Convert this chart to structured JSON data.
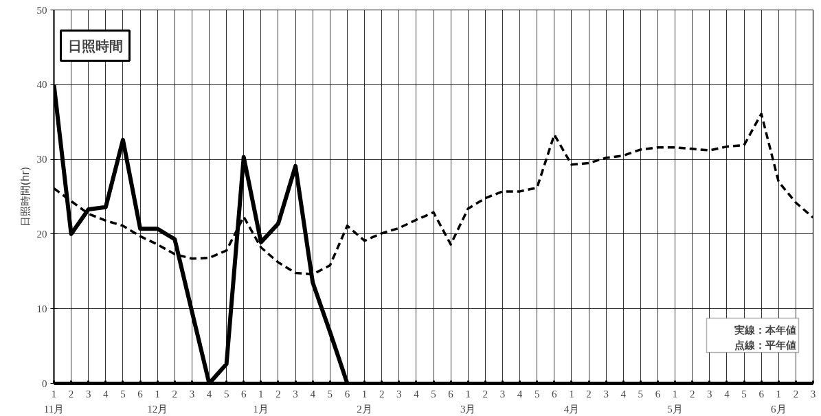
{
  "chart_data": {
    "type": "line",
    "title": "日照時間",
    "ylabel": "日照時間(hr)",
    "categories": [
      "1",
      "2",
      "3",
      "4",
      "5",
      "6",
      "1",
      "2",
      "3",
      "4",
      "5",
      "6",
      "1",
      "2",
      "3",
      "4",
      "5",
      "6",
      "1",
      "2",
      "3",
      "4",
      "5",
      "6",
      "1",
      "2",
      "3",
      "4",
      "5",
      "6",
      "1",
      "2",
      "3",
      "4",
      "5",
      "6",
      "1",
      "2",
      "3",
      "4",
      "5",
      "6",
      "1",
      "2",
      "3"
    ],
    "series": [
      {
        "color": "#000000",
        "line_style": "solid",
        "values": [
          40,
          20,
          23.3,
          23.6,
          32.6,
          20.7,
          20.7,
          19.3,
          9.6,
          0,
          2.6,
          30.3,
          18.9,
          21.4,
          29.1,
          13.5,
          6.9,
          0,
          null,
          null,
          null,
          null,
          null,
          null,
          null,
          null,
          null,
          null,
          null,
          null,
          null,
          null,
          null,
          null,
          null,
          null,
          null,
          null,
          null,
          null,
          null,
          null,
          null,
          null,
          null
        ]
      },
      {
        "color": "#000000",
        "line_style": "dashed",
        "values": [
          26.1,
          24.4,
          22.7,
          21.8,
          21.1,
          19.7,
          18.6,
          17.3,
          16.7,
          16.8,
          17.8,
          22.3,
          18.2,
          16.2,
          14.8,
          14.6,
          15.8,
          21.1,
          19.1,
          20.1,
          20.8,
          21.9,
          22.9,
          18.6,
          23.4,
          24.8,
          25.7,
          25.7,
          26.2,
          33.3,
          29.3,
          29.5,
          30.2,
          30.5,
          31.3,
          31.6,
          31.6,
          31.4,
          31.2,
          31.7,
          31.9,
          36.1,
          27.0,
          24.2,
          22.2
        ]
      }
    ],
    "ylim": [
      0,
      50
    ],
    "yticks": [
      0,
      10,
      20,
      30,
      40,
      50
    ],
    "grid": true,
    "annotations": [
      "11月",
      "12月",
      "1月",
      "2月",
      "3月",
      "4月",
      "5月",
      "6月",
      "実線：本年値",
      "点線：平年値"
    ]
  }
}
